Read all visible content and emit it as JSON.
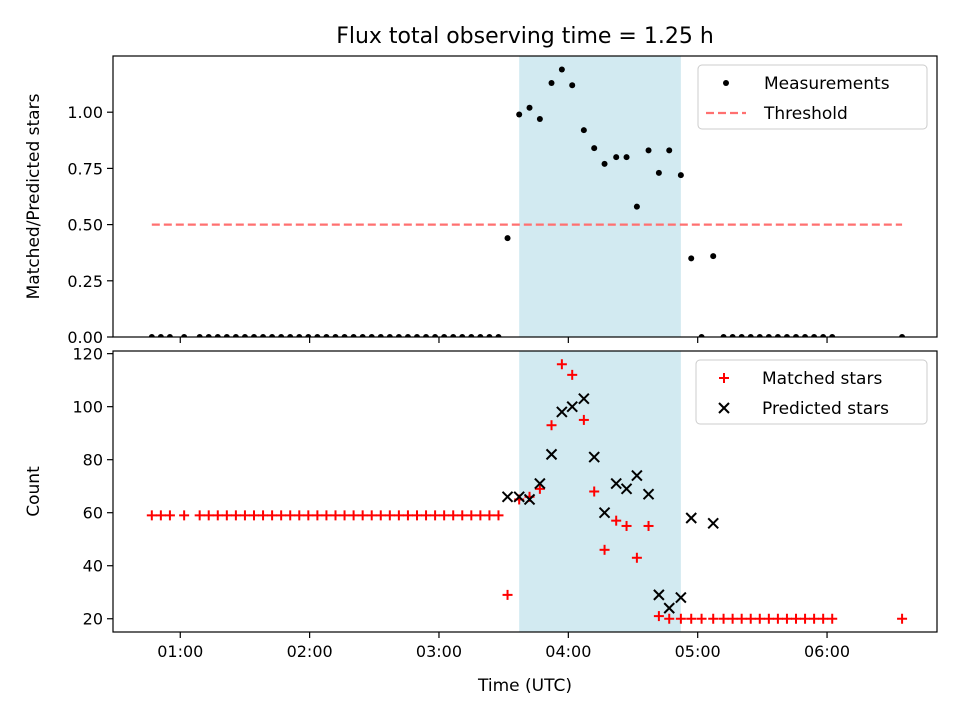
{
  "chart_data": {
    "title": "Flux total observing time = 1.25 h",
    "xlabel": "Time (UTC)",
    "x_unit": "hours UTC",
    "xlim": [
      0.48,
      6.85
    ],
    "xticks": [
      {
        "value": 1,
        "label": "01:00"
      },
      {
        "value": 2,
        "label": "02:00"
      },
      {
        "value": 3,
        "label": "03:00"
      },
      {
        "value": 4,
        "label": "04:00"
      },
      {
        "value": 5,
        "label": "05:00"
      },
      {
        "value": 6,
        "label": "06:00"
      }
    ],
    "shaded_span": {
      "x": [
        3.62,
        4.87
      ],
      "color": "#add8e6"
    },
    "panels": [
      {
        "type": "scatter",
        "ylabel": "Matched/Predicted stars",
        "ylim": [
          0,
          1.25
        ],
        "yticks": [
          {
            "value": 0,
            "label": "0.00"
          },
          {
            "value": 0.25,
            "label": "0.25"
          },
          {
            "value": 0.5,
            "label": "0.50"
          },
          {
            "value": 0.75,
            "label": "0.75"
          },
          {
            "value": 1.0,
            "label": "1.00"
          }
        ],
        "legend": {
          "position": "top-right",
          "entries": [
            {
              "label": "Measurements",
              "marker": "dot",
              "color": "#000000"
            },
            {
              "label": "Threshold",
              "marker": "dashed-line",
              "color": "#ff7070"
            }
          ]
        },
        "series": [
          {
            "name": "Measurements",
            "marker": "dot",
            "color": "#000000",
            "points": [
              [
                0.78,
                0
              ],
              [
                0.85,
                0
              ],
              [
                0.92,
                0
              ],
              [
                1.03,
                0
              ],
              [
                1.15,
                0
              ],
              [
                1.22,
                0
              ],
              [
                1.29,
                0
              ],
              [
                1.36,
                0
              ],
              [
                1.43,
                0
              ],
              [
                1.5,
                0
              ],
              [
                1.57,
                0
              ],
              [
                1.64,
                0
              ],
              [
                1.71,
                0
              ],
              [
                1.78,
                0
              ],
              [
                1.85,
                0
              ],
              [
                1.92,
                0
              ],
              [
                1.99,
                0
              ],
              [
                2.06,
                0
              ],
              [
                2.13,
                0
              ],
              [
                2.2,
                0
              ],
              [
                2.27,
                0
              ],
              [
                2.34,
                0
              ],
              [
                2.41,
                0
              ],
              [
                2.48,
                0
              ],
              [
                2.55,
                0
              ],
              [
                2.62,
                0
              ],
              [
                2.69,
                0
              ],
              [
                2.76,
                0
              ],
              [
                2.83,
                0
              ],
              [
                2.9,
                0
              ],
              [
                2.97,
                0
              ],
              [
                3.04,
                0
              ],
              [
                3.11,
                0
              ],
              [
                3.18,
                0
              ],
              [
                3.25,
                0
              ],
              [
                3.32,
                0
              ],
              [
                3.39,
                0
              ],
              [
                3.46,
                0
              ],
              [
                3.53,
                0.44
              ],
              [
                3.62,
                0.99
              ],
              [
                3.7,
                1.02
              ],
              [
                3.78,
                0.97
              ],
              [
                3.87,
                1.13
              ],
              [
                3.95,
                1.19
              ],
              [
                4.03,
                1.12
              ],
              [
                4.12,
                0.92
              ],
              [
                4.2,
                0.84
              ],
              [
                4.28,
                0.77
              ],
              [
                4.37,
                0.8
              ],
              [
                4.45,
                0.8
              ],
              [
                4.53,
                0.58
              ],
              [
                4.62,
                0.83
              ],
              [
                4.7,
                0.73
              ],
              [
                4.78,
                0.83
              ],
              [
                4.87,
                0.72
              ],
              [
                4.95,
                0.35
              ],
              [
                5.03,
                0
              ],
              [
                5.12,
                0.36
              ],
              [
                5.2,
                0
              ],
              [
                5.27,
                0
              ],
              [
                5.34,
                0
              ],
              [
                5.41,
                0
              ],
              [
                5.48,
                0
              ],
              [
                5.55,
                0
              ],
              [
                5.62,
                0
              ],
              [
                5.69,
                0
              ],
              [
                5.76,
                0
              ],
              [
                5.83,
                0
              ],
              [
                5.9,
                0
              ],
              [
                5.97,
                0
              ],
              [
                6.04,
                0
              ],
              [
                6.58,
                0
              ]
            ]
          },
          {
            "name": "Threshold",
            "marker": "dashed-line",
            "color": "#ff7070",
            "points": [
              [
                0.78,
                0.5
              ],
              [
                6.58,
                0.5
              ]
            ]
          }
        ]
      },
      {
        "type": "scatter",
        "ylabel": "Count",
        "ylim": [
          15,
          121
        ],
        "yticks": [
          {
            "value": 20,
            "label": "20"
          },
          {
            "value": 40,
            "label": "40"
          },
          {
            "value": 60,
            "label": "60"
          },
          {
            "value": 80,
            "label": "80"
          },
          {
            "value": 100,
            "label": "100"
          },
          {
            "value": 120,
            "label": "120"
          }
        ],
        "legend": {
          "position": "top-right",
          "entries": [
            {
              "label": "Matched stars",
              "marker": "plus",
              "color": "#ff0000"
            },
            {
              "label": "Predicted stars",
              "marker": "cross",
              "color": "#000000"
            }
          ]
        },
        "series": [
          {
            "name": "Matched stars",
            "marker": "plus",
            "color": "#ff0000",
            "points": [
              [
                0.78,
                59
              ],
              [
                0.85,
                59
              ],
              [
                0.92,
                59
              ],
              [
                1.03,
                59
              ],
              [
                1.15,
                59
              ],
              [
                1.22,
                59
              ],
              [
                1.29,
                59
              ],
              [
                1.36,
                59
              ],
              [
                1.43,
                59
              ],
              [
                1.5,
                59
              ],
              [
                1.57,
                59
              ],
              [
                1.64,
                59
              ],
              [
                1.71,
                59
              ],
              [
                1.78,
                59
              ],
              [
                1.85,
                59
              ],
              [
                1.92,
                59
              ],
              [
                1.99,
                59
              ],
              [
                2.06,
                59
              ],
              [
                2.13,
                59
              ],
              [
                2.2,
                59
              ],
              [
                2.27,
                59
              ],
              [
                2.34,
                59
              ],
              [
                2.41,
                59
              ],
              [
                2.48,
                59
              ],
              [
                2.55,
                59
              ],
              [
                2.62,
                59
              ],
              [
                2.69,
                59
              ],
              [
                2.76,
                59
              ],
              [
                2.83,
                59
              ],
              [
                2.9,
                59
              ],
              [
                2.97,
                59
              ],
              [
                3.04,
                59
              ],
              [
                3.11,
                59
              ],
              [
                3.18,
                59
              ],
              [
                3.25,
                59
              ],
              [
                3.32,
                59
              ],
              [
                3.39,
                59
              ],
              [
                3.46,
                59
              ],
              [
                3.53,
                29
              ],
              [
                3.62,
                65
              ],
              [
                3.7,
                66
              ],
              [
                3.78,
                69
              ],
              [
                3.87,
                93
              ],
              [
                3.95,
                116
              ],
              [
                4.03,
                112
              ],
              [
                4.12,
                95
              ],
              [
                4.2,
                68
              ],
              [
                4.28,
                46
              ],
              [
                4.37,
                57
              ],
              [
                4.45,
                55
              ],
              [
                4.53,
                43
              ],
              [
                4.62,
                55
              ],
              [
                4.7,
                21
              ],
              [
                4.78,
                20
              ],
              [
                4.87,
                20
              ],
              [
                4.95,
                20
              ],
              [
                5.03,
                20
              ],
              [
                5.12,
                20
              ],
              [
                5.2,
                20
              ],
              [
                5.27,
                20
              ],
              [
                5.34,
                20
              ],
              [
                5.41,
                20
              ],
              [
                5.48,
                20
              ],
              [
                5.55,
                20
              ],
              [
                5.62,
                20
              ],
              [
                5.69,
                20
              ],
              [
                5.76,
                20
              ],
              [
                5.83,
                20
              ],
              [
                5.9,
                20
              ],
              [
                5.97,
                20
              ],
              [
                6.04,
                20
              ],
              [
                6.58,
                20
              ]
            ]
          },
          {
            "name": "Predicted stars",
            "marker": "cross",
            "color": "#000000",
            "points": [
              [
                3.53,
                66
              ],
              [
                3.62,
                66
              ],
              [
                3.7,
                65
              ],
              [
                3.78,
                71
              ],
              [
                3.87,
                82
              ],
              [
                3.95,
                98
              ],
              [
                4.03,
                100
              ],
              [
                4.12,
                103
              ],
              [
                4.2,
                81
              ],
              [
                4.28,
                60
              ],
              [
                4.37,
                71
              ],
              [
                4.45,
                69
              ],
              [
                4.53,
                74
              ],
              [
                4.62,
                67
              ],
              [
                4.7,
                29
              ],
              [
                4.78,
                24
              ],
              [
                4.87,
                28
              ],
              [
                4.95,
                58
              ],
              [
                5.12,
                56
              ]
            ]
          }
        ]
      }
    ]
  }
}
